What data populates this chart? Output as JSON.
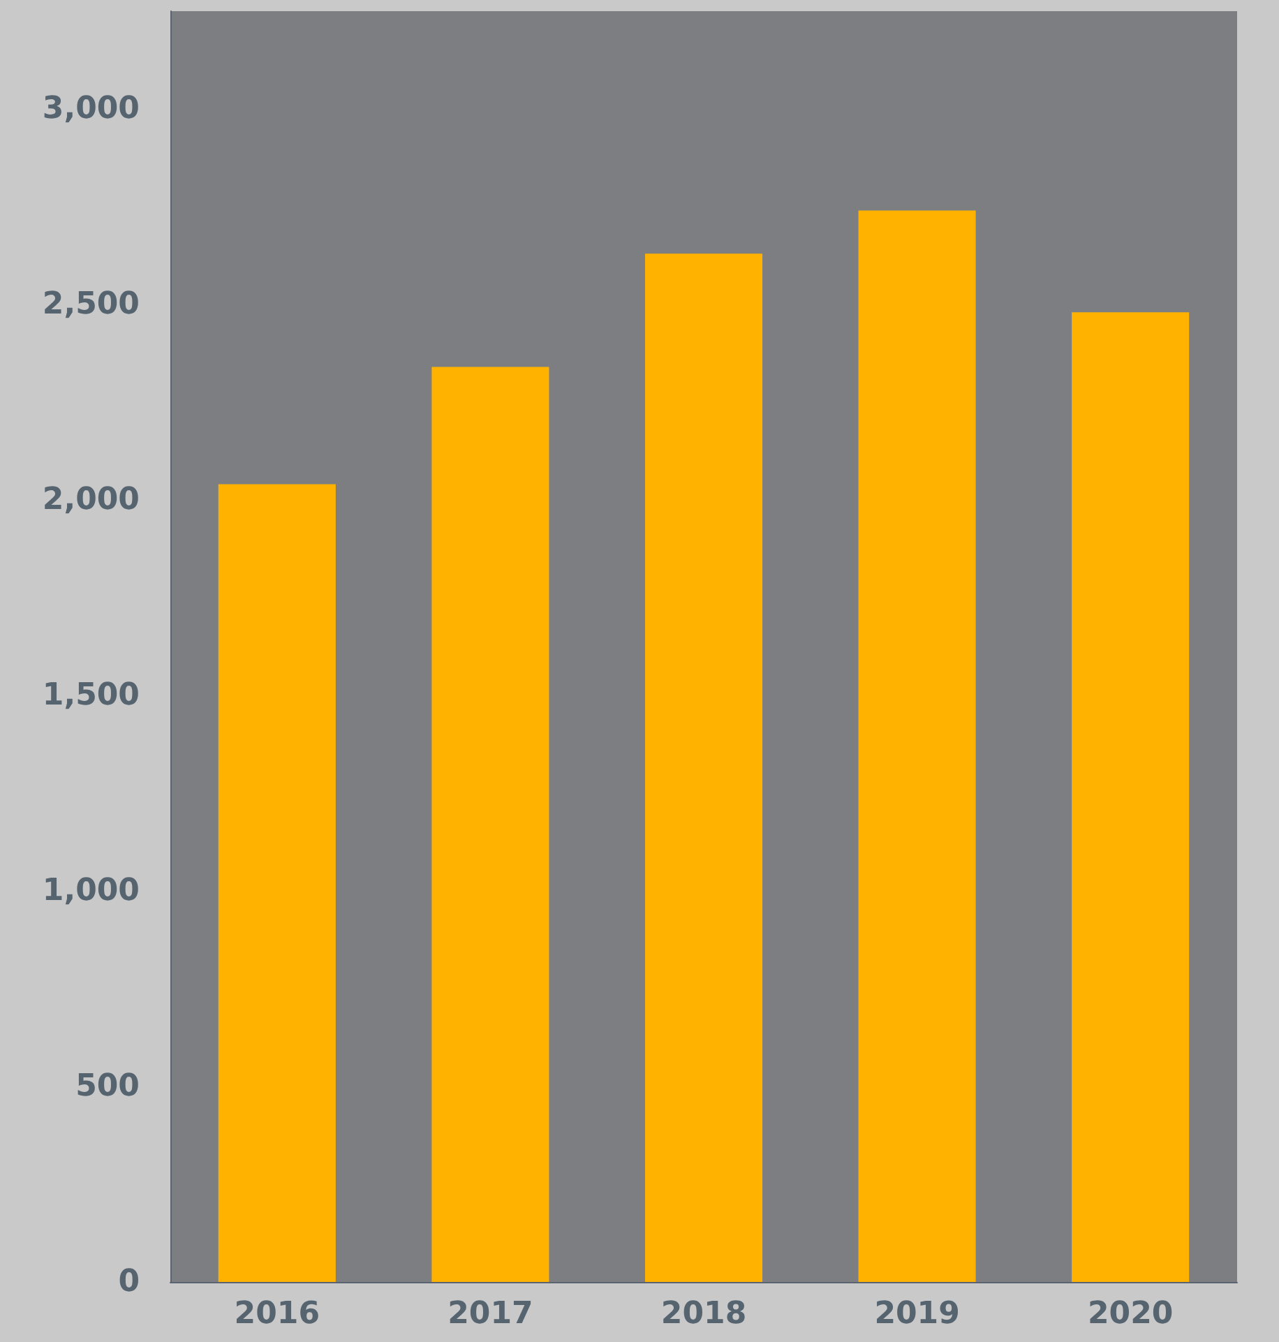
{
  "chart_data": {
    "type": "bar",
    "categories": [
      "2016",
      "2017",
      "2018",
      "2019",
      "2020"
    ],
    "values": [
      2040,
      2340,
      2630,
      2740,
      2480
    ],
    "color": "#ffb300",
    "ylim": [
      0,
      3250
    ],
    "yticks": [
      {
        "value": 0,
        "label": "0"
      },
      {
        "value": 500,
        "label": "500"
      },
      {
        "value": 1000,
        "label": "1,000"
      },
      {
        "value": 1500,
        "label": "1,500"
      },
      {
        "value": 2000,
        "label": "2,000"
      },
      {
        "value": 2500,
        "label": "2,500"
      },
      {
        "value": 3000,
        "label": "3,000"
      }
    ],
    "grid": false
  }
}
